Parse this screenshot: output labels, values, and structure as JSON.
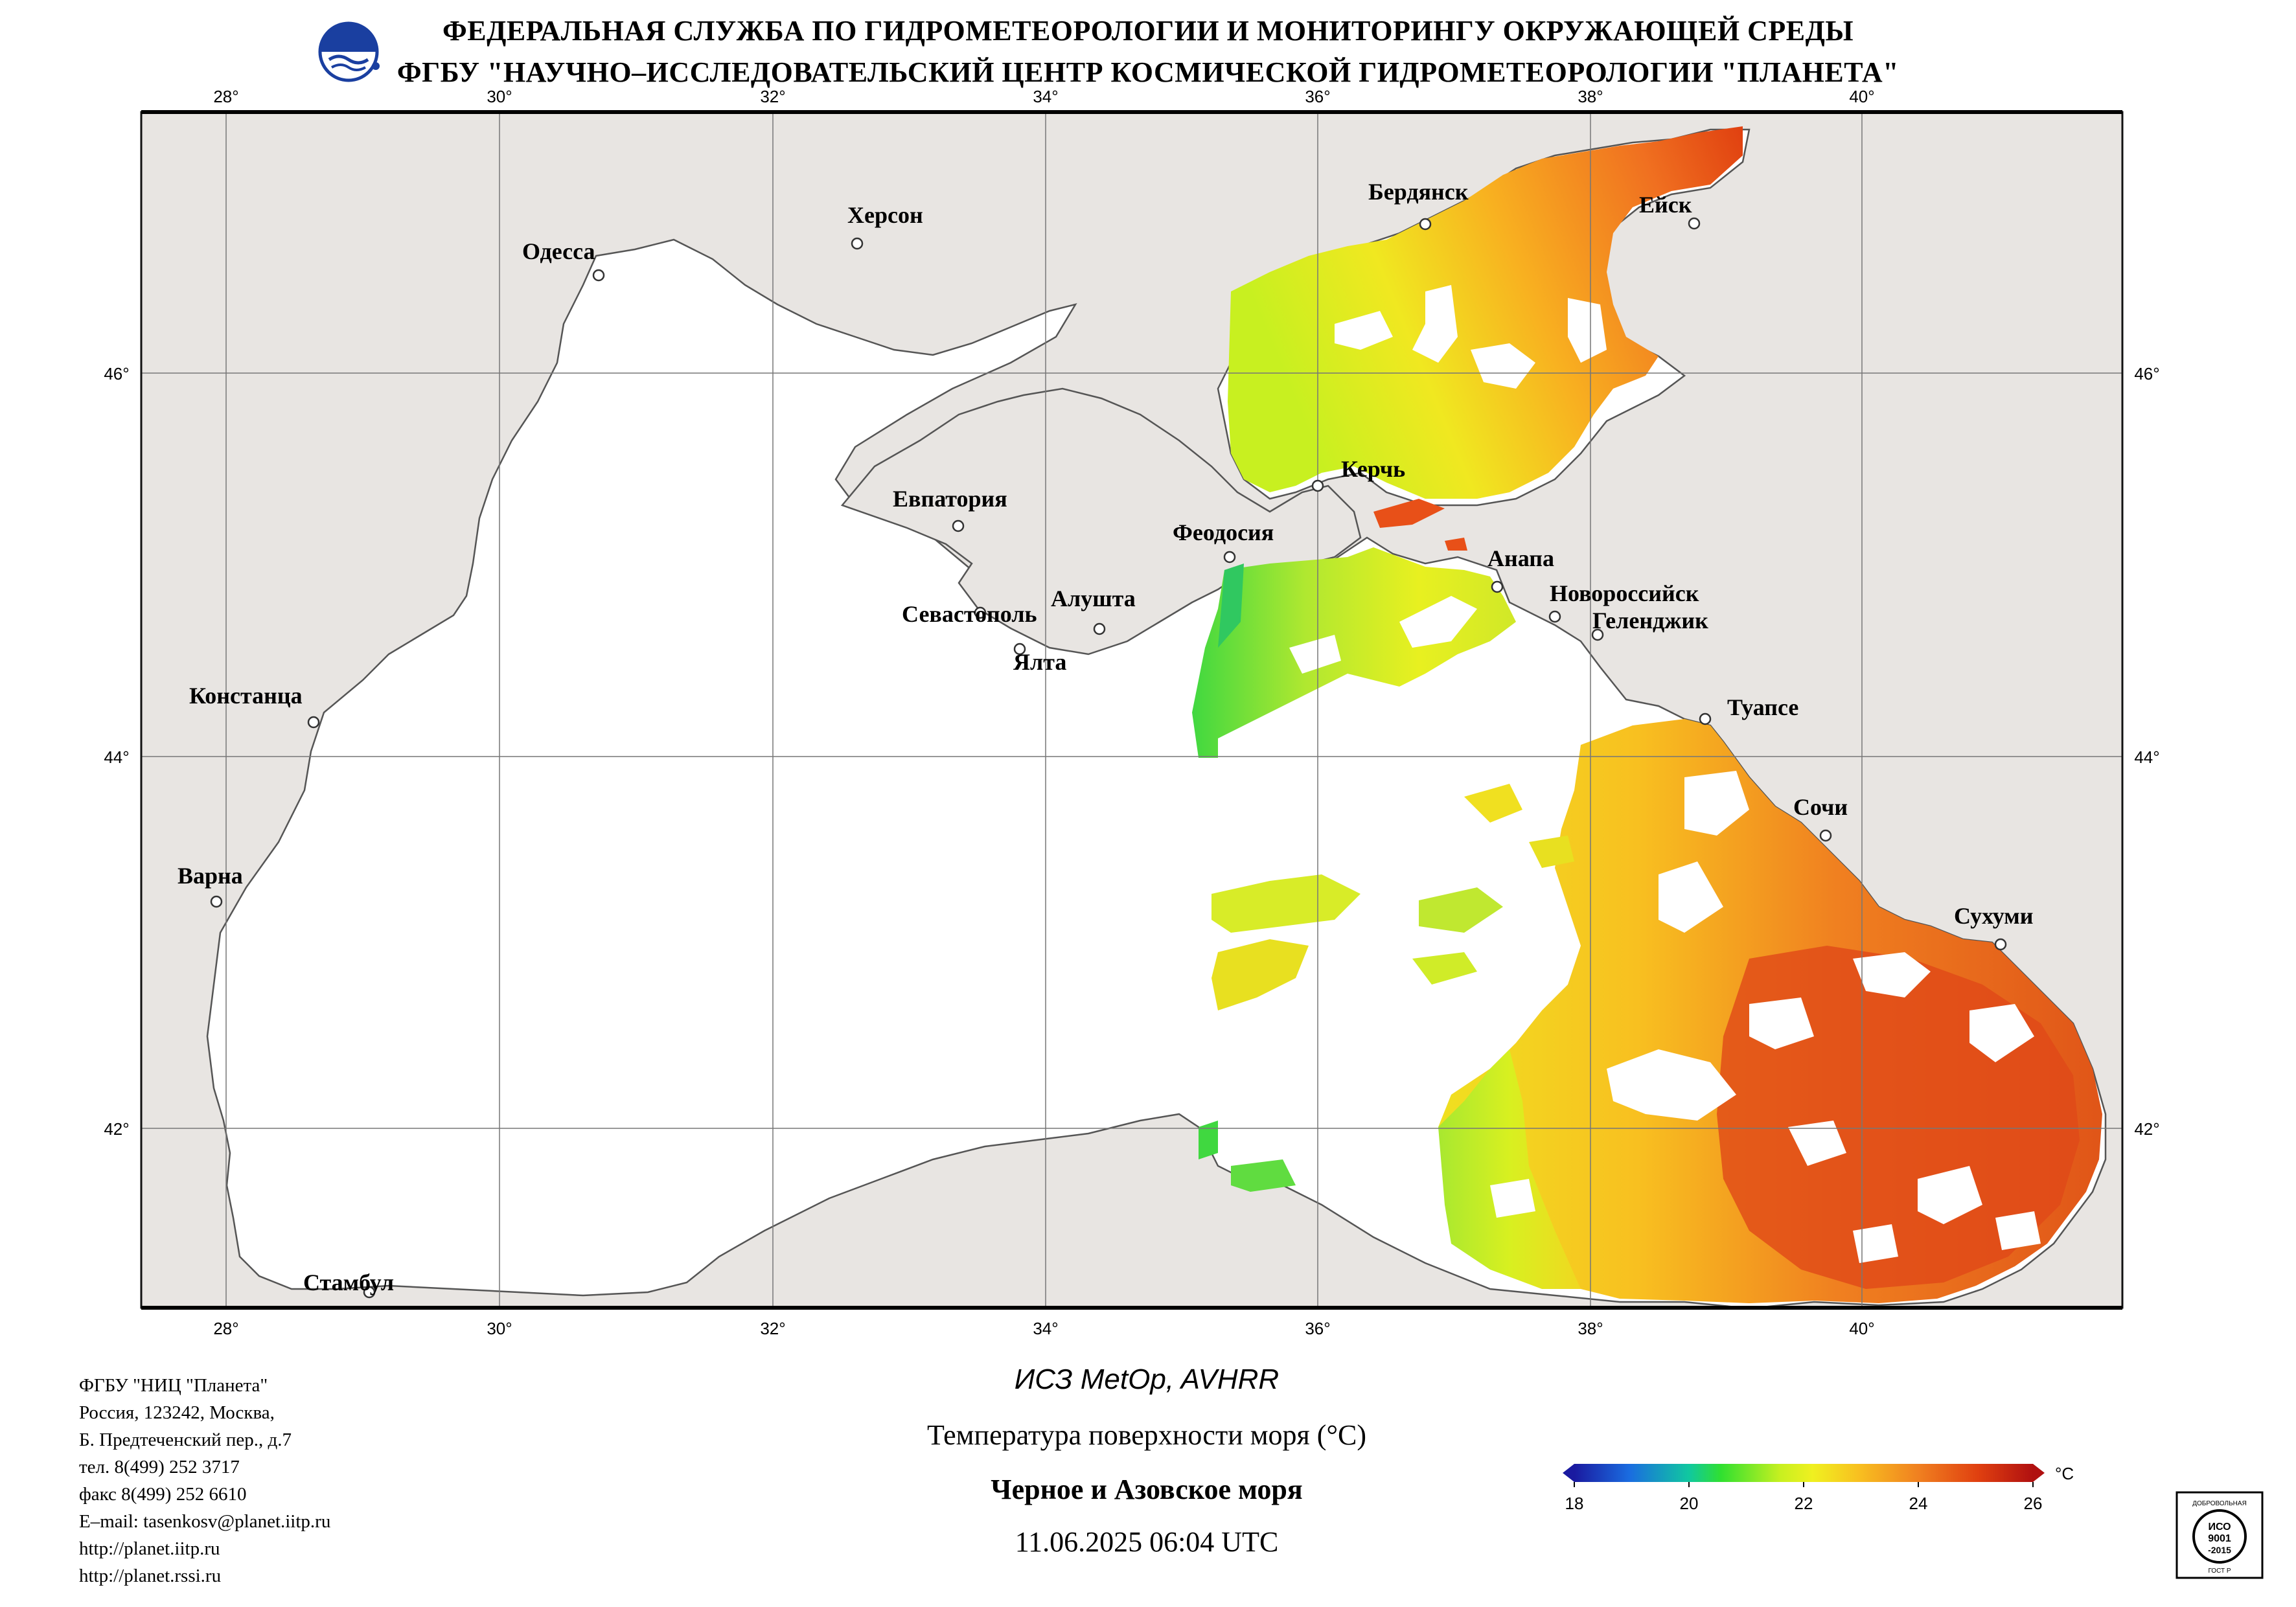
{
  "header": {
    "line1": "ФЕДЕРАЛЬНАЯ СЛУЖБА ПО ГИДРОМЕТЕОРОЛОГИИ И МОНИТОРИНГУ ОКРУЖАЮЩЕЙ СРЕДЫ",
    "line2": "ФГБУ \"НАУЧНО–ИССЛЕДОВАТЕЛЬСКИЙ ЦЕНТР КОСМИЧЕСКОЙ ГИДРОМЕТЕОРОЛОГИИ \"ПЛАНЕТА\""
  },
  "map": {
    "lon_ticks": [
      "28°",
      "30°",
      "32°",
      "34°",
      "36°",
      "38°",
      "40°"
    ],
    "lat_ticks": [
      "46°",
      "44°",
      "42°"
    ],
    "cities": {
      "berdyansk": "Бердянск",
      "yeysk": "Ейск",
      "kherson": "Херсон",
      "odessa": "Одесса",
      "kerch": "Керчь",
      "evpatoria": "Евпатория",
      "feodosia": "Феодосия",
      "anapa": "Анапа",
      "novorossiysk": "Новороссийск",
      "gelendzhik": "Геленджик",
      "alushta": "Алушта",
      "sevastopol": "Севастополь",
      "yalta": "Ялта",
      "constanta": "Констанца",
      "tuapse": "Туапсе",
      "sochi": "Сочи",
      "varna": "Варна",
      "sukhumi": "Сухуми",
      "istanbul": "Стамбул"
    },
    "colors": {
      "land": "#e8e5e2",
      "sea_nodata": "#ffffff",
      "coast": "#555555"
    }
  },
  "footer": {
    "org": [
      "ФГБУ \"НИЦ \"Планета\"",
      "Россия, 123242, Москва,",
      "Б. Предтеченский пер., д.7",
      "тел. 8(499) 252 3717",
      "факс 8(499) 252 6610",
      "E–mail: tasenkosv@planet.iitp.ru",
      "http://planet.iitp.ru",
      "http://planet.rssi.ru"
    ],
    "satellite": "ИСЗ MetOp, AVHRR",
    "parameter": "Температура поверхности моря (°С)",
    "region": "Черное и Азовское моря",
    "datetime": "11.06.2025 06:04 UTC"
  },
  "colorbar": {
    "unit": "°С",
    "tick_labels": [
      "18",
      "20",
      "22",
      "24",
      "26"
    ],
    "range": [
      18,
      26
    ],
    "stops": [
      "#1a1aa0",
      "#1a6ce0",
      "#10c8a0",
      "#30e030",
      "#c8f020",
      "#f0f020",
      "#f8c020",
      "#f08020",
      "#e04010",
      "#b01010"
    ]
  },
  "certificate": {
    "top": "ДОБРОВОЛЬНАЯ",
    "mid1": "ИСО",
    "mid2": "9001",
    "mid3": "-2015",
    "bottom": "ГОСТ Р"
  }
}
